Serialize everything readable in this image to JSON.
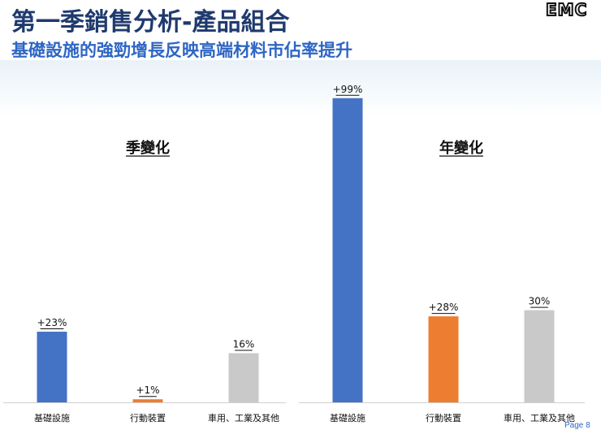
{
  "header": {
    "title": "第一季銷售分析-產品組合",
    "subtitle": "基礎設施的強勁增長反映高端材料市佔率提升",
    "logo_text": "EMC"
  },
  "footer": {
    "page_text": "Page 8"
  },
  "colors": {
    "blue": "#4472C4",
    "orange": "#ED7D31",
    "gray": "#C9C9C9",
    "title": "#1f3a6e",
    "subtitle": "#2e66c4"
  },
  "chart_data": [
    {
      "type": "bar",
      "title": "季變化",
      "categories": [
        "基礎設施",
        "行動裝置",
        "車用、工業及其他"
      ],
      "values": [
        23,
        1,
        16
      ],
      "data_labels": [
        "+23%",
        "+1%",
        "16%"
      ],
      "bar_colors": [
        "#4472C4",
        "#ED7D31",
        "#C9C9C9"
      ],
      "ylim": [
        0,
        100
      ],
      "grid": false,
      "legend": "none"
    },
    {
      "type": "bar",
      "title": "年變化",
      "categories": [
        "基礎設施",
        "行動裝置",
        "車用、工業及其他"
      ],
      "values": [
        99,
        28,
        30
      ],
      "data_labels": [
        "+99%",
        "+28%",
        "30%"
      ],
      "bar_colors": [
        "#4472C4",
        "#ED7D31",
        "#C9C9C9"
      ],
      "ylim": [
        0,
        100
      ],
      "grid": false,
      "legend": "none"
    }
  ]
}
